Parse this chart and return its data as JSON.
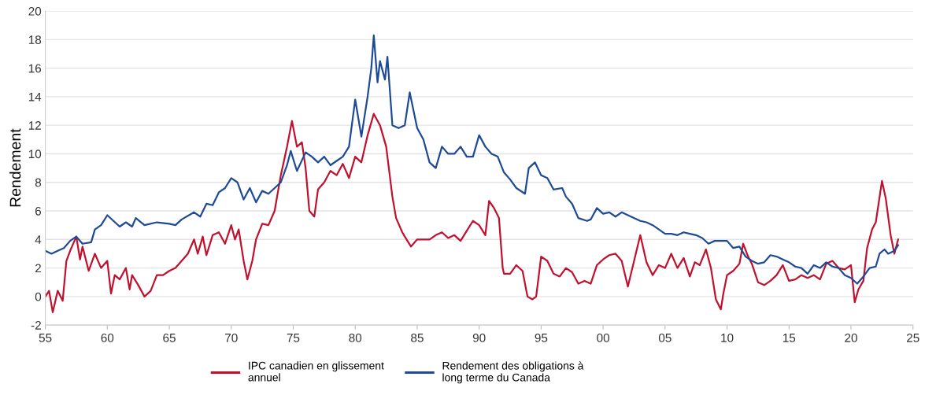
{
  "chart_data": {
    "type": "line",
    "ylabel": "Rendement",
    "xlim": [
      1955,
      2025
    ],
    "xticks": [
      {
        "value": 1955,
        "label": "55"
      },
      {
        "value": 1960,
        "label": "60"
      },
      {
        "value": 1965,
        "label": "65"
      },
      {
        "value": 1970,
        "label": "70"
      },
      {
        "value": 1975,
        "label": "75"
      },
      {
        "value": 1980,
        "label": "80"
      },
      {
        "value": 1985,
        "label": "85"
      },
      {
        "value": 1990,
        "label": "90"
      },
      {
        "value": 1995,
        "label": "95"
      },
      {
        "value": 2000,
        "label": "00"
      },
      {
        "value": 2005,
        "label": "05"
      },
      {
        "value": 2010,
        "label": "10"
      },
      {
        "value": 2015,
        "label": "15"
      },
      {
        "value": 2020,
        "label": "20"
      },
      {
        "value": 2025,
        "label": "25"
      }
    ],
    "ylim": [
      -2,
      20
    ],
    "yticks": [
      -2,
      0,
      2,
      4,
      6,
      8,
      10,
      12,
      14,
      16,
      18,
      20
    ],
    "grid": "y",
    "legend": "bottom",
    "marker": "none",
    "line_style": "solid",
    "series": [
      {
        "name": "IPC canadien en glissement annuel",
        "color": "#c0112f",
        "x": [
          1955,
          1955.3,
          1955.6,
          1956,
          1956.4,
          1956.7,
          1957,
          1957.5,
          1957.8,
          1958,
          1958.5,
          1959,
          1959.5,
          1960,
          1960.3,
          1960.6,
          1961,
          1961.5,
          1961.8,
          1962,
          1962.5,
          1963,
          1963.5,
          1964,
          1964.5,
          1965,
          1965.5,
          1966,
          1966.5,
          1967,
          1967.3,
          1967.7,
          1968,
          1968.5,
          1969,
          1969.5,
          1970,
          1970.3,
          1970.6,
          1971,
          1971.3,
          1971.7,
          1972,
          1972.5,
          1973,
          1973.5,
          1974,
          1974.5,
          1974.9,
          1975.3,
          1975.7,
          1976,
          1976.3,
          1976.7,
          1977,
          1977.5,
          1978,
          1978.5,
          1979,
          1979.5,
          1980,
          1980.5,
          1981,
          1981.5,
          1982,
          1982.5,
          1983,
          1983.3,
          1983.8,
          1984,
          1984.5,
          1985,
          1986,
          1986.5,
          1987,
          1987.5,
          1988,
          1988.5,
          1989,
          1989.5,
          1990,
          1990.5,
          1990.8,
          1991.2,
          1991.6,
          1991.9,
          1992,
          1992.5,
          1993,
          1993.5,
          1993.9,
          1994.3,
          1994.6,
          1995,
          1995.5,
          1996,
          1996.5,
          1997,
          1997.5,
          1998,
          1998.5,
          1999,
          1999.5,
          2000,
          2000.5,
          2001,
          2001.5,
          2002,
          2002.5,
          2003,
          2003.5,
          2004,
          2004.5,
          2005,
          2005.5,
          2006,
          2006.5,
          2007,
          2007.4,
          2007.8,
          2008.3,
          2008.7,
          2009.1,
          2009.5,
          2009.7,
          2010,
          2010.5,
          2011,
          2011.3,
          2011.7,
          2012,
          2012.5,
          2013,
          2013.5,
          2014,
          2014.5,
          2015,
          2015.5,
          2016,
          2016.5,
          2017,
          2017.5,
          2018,
          2018.5,
          2019,
          2019.5,
          2020,
          2020.3,
          2020.6,
          2021,
          2021.3,
          2021.7,
          2022,
          2022.5,
          2022.8,
          2023.2,
          2023.5,
          2023.8
        ],
        "values": [
          0.0,
          0.4,
          -1.1,
          0.4,
          -0.3,
          2.5,
          3.2,
          4.2,
          2.6,
          3.5,
          1.8,
          3.0,
          2.0,
          2.5,
          0.2,
          1.5,
          1.2,
          2.0,
          0.5,
          1.5,
          0.8,
          0.0,
          0.4,
          1.5,
          1.5,
          1.8,
          2.0,
          2.5,
          3.0,
          4.0,
          3.0,
          4.2,
          2.9,
          4.3,
          4.5,
          3.7,
          5.0,
          4.0,
          4.7,
          2.5,
          1.2,
          2.5,
          4.0,
          5.1,
          5.0,
          6.0,
          8.5,
          10.5,
          12.3,
          10.5,
          10.8,
          9.0,
          6.0,
          5.6,
          7.5,
          8.0,
          8.8,
          8.5,
          9.3,
          8.3,
          9.8,
          9.4,
          11.3,
          12.8,
          12.0,
          10.5,
          7.0,
          5.5,
          4.5,
          4.2,
          3.5,
          4.0,
          4.0,
          4.3,
          4.5,
          4.1,
          4.3,
          3.9,
          4.6,
          5.3,
          5.0,
          4.3,
          6.7,
          6.2,
          5.5,
          2.0,
          1.6,
          1.6,
          2.2,
          1.8,
          0.0,
          -0.2,
          0.0,
          2.8,
          2.5,
          1.6,
          1.4,
          2.0,
          1.7,
          0.9,
          1.1,
          0.9,
          2.2,
          2.6,
          2.9,
          3.0,
          2.5,
          0.7,
          2.5,
          4.3,
          2.4,
          1.5,
          2.2,
          2.0,
          3.0,
          2.0,
          2.7,
          1.4,
          2.4,
          2.2,
          3.3,
          2.0,
          -0.2,
          -0.9,
          0.2,
          1.5,
          1.8,
          2.3,
          3.7,
          2.8,
          2.3,
          1.0,
          0.8,
          1.1,
          1.5,
          2.2,
          1.1,
          1.2,
          1.5,
          1.3,
          1.5,
          1.2,
          2.3,
          2.5,
          2.0,
          1.9,
          2.2,
          -0.4,
          0.5,
          1.1,
          3.4,
          4.7,
          5.2,
          8.1,
          6.9,
          4.3,
          3.0,
          4.0
        ]
      },
      {
        "name": "Rendement des obligations à long terme du Canada",
        "color": "#1f4a96",
        "x": [
          1955,
          1955.5,
          1956,
          1956.5,
          1957,
          1957.5,
          1958,
          1958.7,
          1959,
          1959.5,
          1960,
          1960.5,
          1961,
          1961.5,
          1962,
          1962.3,
          1963,
          1964,
          1965,
          1965.5,
          1966,
          1967,
          1967.5,
          1968,
          1968.5,
          1969,
          1969.5,
          1970,
          1970.5,
          1971,
          1971.5,
          1972,
          1972.5,
          1973,
          1973.5,
          1974,
          1974.5,
          1974.8,
          1975.3,
          1976,
          1976.5,
          1977,
          1977.5,
          1978,
          1978.5,
          1979,
          1979.5,
          1980,
          1980.5,
          1981,
          1981.3,
          1981.5,
          1981.8,
          1982,
          1982.4,
          1982.6,
          1983,
          1983.5,
          1984,
          1984.4,
          1985,
          1985.5,
          1986,
          1986.5,
          1987,
          1987.5,
          1988,
          1988.5,
          1989,
          1989.5,
          1990,
          1990.5,
          1991,
          1991.5,
          1992,
          1992.5,
          1993,
          1993.7,
          1994,
          1994.5,
          1995,
          1995.5,
          1996,
          1996.7,
          1997,
          1997.5,
          1998,
          1998.7,
          1999,
          1999.5,
          2000,
          2000.5,
          2001,
          2001.5,
          2002,
          2003,
          2003.5,
          2004,
          2004.5,
          2005,
          2005.5,
          2006,
          2006.5,
          2007,
          2007.5,
          2008,
          2008.5,
          2009,
          2009.5,
          2010,
          2010.5,
          2011,
          2011.5,
          2012,
          2012.5,
          2013,
          2013.5,
          2014,
          2014.5,
          2015,
          2015.5,
          2016,
          2016.5,
          2017,
          2017.5,
          2018,
          2018.5,
          2019,
          2019.5,
          2020,
          2020.5,
          2021,
          2021.5,
          2022,
          2022.3,
          2022.7,
          2023,
          2023.5,
          2023.8
        ],
        "values": [
          3.2,
          3.0,
          3.2,
          3.4,
          3.9,
          4.2,
          3.7,
          3.8,
          4.7,
          5.0,
          5.7,
          5.3,
          4.9,
          5.2,
          4.9,
          5.5,
          5.0,
          5.2,
          5.1,
          5.0,
          5.4,
          5.9,
          5.6,
          6.5,
          6.4,
          7.3,
          7.6,
          8.3,
          8.0,
          6.8,
          7.6,
          6.6,
          7.4,
          7.2,
          7.6,
          8.0,
          9.2,
          10.2,
          8.8,
          10.1,
          9.8,
          9.4,
          9.8,
          9.2,
          9.5,
          9.8,
          10.5,
          13.8,
          11.2,
          14.0,
          16.0,
          18.3,
          15.0,
          16.5,
          15.2,
          16.8,
          12.0,
          11.8,
          12.0,
          14.3,
          11.8,
          11.0,
          9.4,
          9.0,
          10.5,
          10.0,
          10.0,
          10.5,
          9.8,
          9.8,
          11.3,
          10.5,
          10.0,
          9.8,
          8.7,
          8.2,
          7.6,
          7.2,
          9.0,
          9.4,
          8.5,
          8.3,
          7.5,
          7.6,
          7.0,
          6.5,
          5.5,
          5.3,
          5.4,
          6.2,
          5.8,
          5.9,
          5.6,
          5.9,
          5.7,
          5.3,
          5.2,
          5.0,
          4.7,
          4.4,
          4.4,
          4.3,
          4.5,
          4.4,
          4.3,
          4.1,
          3.7,
          3.9,
          3.9,
          3.9,
          3.4,
          3.5,
          2.8,
          2.5,
          2.3,
          2.4,
          2.9,
          2.8,
          2.6,
          2.4,
          2.1,
          2.0,
          1.6,
          2.2,
          2.0,
          2.4,
          2.1,
          2.0,
          1.5,
          1.3,
          0.9,
          1.4,
          2.0,
          2.1,
          3.0,
          3.3,
          3.0,
          3.2,
          3.6
        ]
      }
    ]
  }
}
